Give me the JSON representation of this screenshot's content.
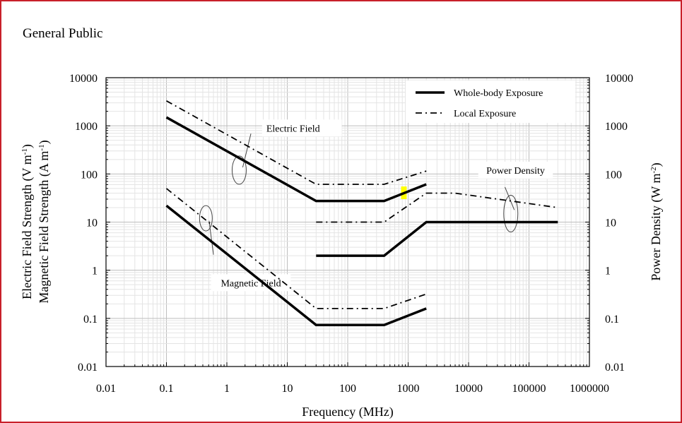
{
  "chart_data": {
    "type": "line",
    "title": "General Public",
    "xlabel": "Frequency (MHz)",
    "ylabel_left": [
      "Electric Field  Strength (V m",
      "Magnetic Field Strength (A m"
    ],
    "ylabel_left_sup": "-1",
    "ylabel_right": "Power Density (W m",
    "ylabel_right_sup": "-2",
    "xscale": "log",
    "yscale": "log",
    "xlim": [
      0.01,
      1000000
    ],
    "ylim": [
      0.01,
      10000
    ],
    "x_ticks": [
      "0.01",
      "0.1",
      "1",
      "10",
      "100",
      "1000",
      "10000",
      "100000",
      "1000000"
    ],
    "y_ticks": [
      "0.01",
      "0.1",
      "1",
      "10",
      "100",
      "1000",
      "10000"
    ],
    "grid": true,
    "legend": {
      "placement": "top-right",
      "entries": [
        {
          "label": "Whole-body Exposure",
          "style": "solid"
        },
        {
          "label": "Local Exposure",
          "style": "dash-dot"
        }
      ]
    },
    "series": [
      {
        "name": "Electric Field - Whole-body Exposure",
        "style": "solid",
        "points": [
          [
            0.1,
            1500
          ],
          [
            30,
            27.5
          ],
          [
            400,
            27.5
          ],
          [
            2000,
            61
          ]
        ]
      },
      {
        "name": "Electric Field - Local Exposure",
        "style": "dash-dot",
        "points": [
          [
            0.1,
            3300
          ],
          [
            30,
            61
          ],
          [
            400,
            61
          ],
          [
            2000,
            115
          ]
        ]
      },
      {
        "name": "Magnetic Field - Whole-body Exposure",
        "style": "solid",
        "points": [
          [
            0.1,
            22
          ],
          [
            30,
            0.073
          ],
          [
            400,
            0.073
          ],
          [
            2000,
            0.16
          ]
        ]
      },
      {
        "name": "Magnetic Field - Local Exposure",
        "style": "dash-dot",
        "points": [
          [
            0.1,
            50
          ],
          [
            30,
            0.16
          ],
          [
            400,
            0.16
          ],
          [
            2000,
            0.32
          ]
        ]
      },
      {
        "name": "Power Density - Whole-body Exposure",
        "style": "solid",
        "points": [
          [
            30,
            2
          ],
          [
            400,
            2
          ],
          [
            2000,
            10
          ],
          [
            300000,
            10
          ]
        ]
      },
      {
        "name": "Power Density - Local Exposure",
        "style": "dash-dot",
        "points": [
          [
            30,
            10
          ],
          [
            400,
            10
          ],
          [
            2000,
            40
          ],
          [
            6000,
            40
          ],
          [
            300000,
            20
          ]
        ]
      }
    ],
    "annotations": [
      {
        "text": "Electric Field",
        "x": 1.6,
        "y": 260
      },
      {
        "text": "Magnetic Field",
        "x": 0.35,
        "y": 3.2
      },
      {
        "text": "Power Density",
        "x": 50000,
        "y": 30
      }
    ],
    "highlight": {
      "color": "#ffff00",
      "x": 850,
      "y": [
        30,
        55
      ]
    },
    "colors": {
      "line": "#000000",
      "grid_major": "#bdbdbd",
      "grid_minor": "#e4e4e4",
      "border": "#c8202a"
    }
  }
}
